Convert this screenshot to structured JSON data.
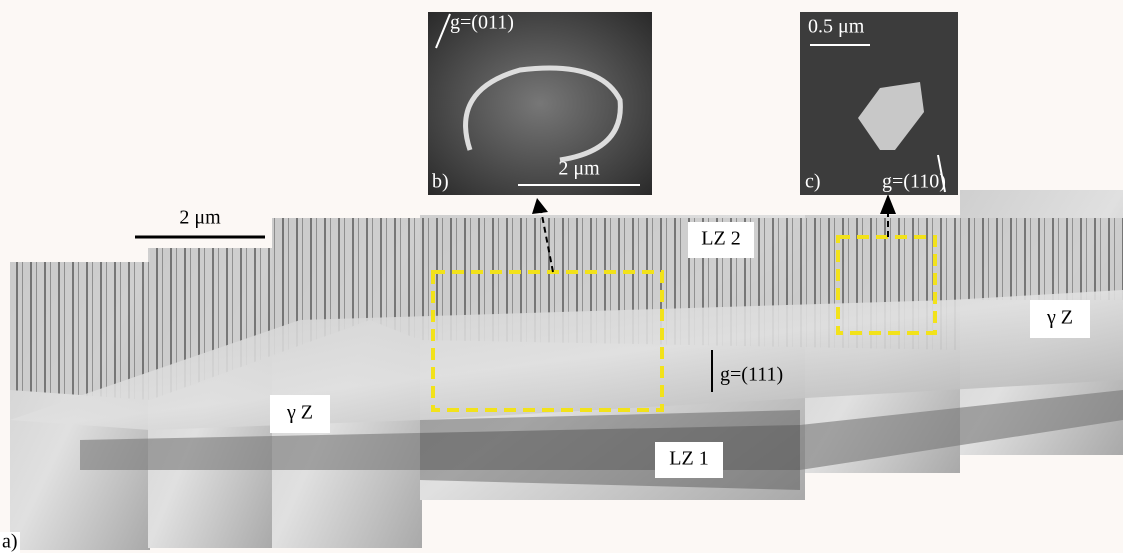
{
  "panels": {
    "a": {
      "label": "a)",
      "scale_bar": "2 μm",
      "annotations": [
        "LZ 2",
        "g=(111)",
        "γ Z",
        "γ Z",
        "LZ 1"
      ]
    },
    "b": {
      "label": "b)",
      "g_vector": "g=(011)",
      "scale_bar": "2 μm"
    },
    "c": {
      "label": "c)",
      "g_vector": "g=(110)",
      "scale_bar": "0.5 μm"
    }
  }
}
